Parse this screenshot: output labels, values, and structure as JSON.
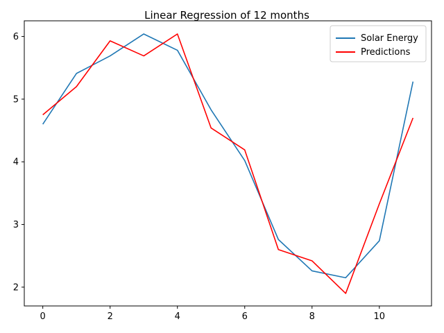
{
  "chart_data": {
    "type": "line",
    "title": "Linear Regression of 12 months",
    "xlabel": "",
    "ylabel": "",
    "x": [
      0,
      1,
      2,
      3,
      4,
      5,
      6,
      7,
      8,
      9,
      10,
      11
    ],
    "xlim": [
      -0.55,
      11.55
    ],
    "ylim": [
      1.7,
      6.25
    ],
    "xticks": [
      0,
      2,
      4,
      6,
      8,
      10
    ],
    "yticks": [
      2,
      3,
      4,
      5,
      6
    ],
    "grid": false,
    "legend_position": "top-right",
    "series": [
      {
        "name": "Solar Energy",
        "color": "#1f77b4",
        "values": [
          4.6,
          5.41,
          5.69,
          6.04,
          5.78,
          4.83,
          4.02,
          2.76,
          2.26,
          2.15,
          2.74,
          5.28
        ]
      },
      {
        "name": "Predictions",
        "color": "#ff0000",
        "values": [
          4.75,
          5.2,
          5.93,
          5.69,
          6.04,
          4.54,
          4.19,
          2.6,
          2.42,
          1.9,
          3.33,
          4.7
        ]
      }
    ]
  }
}
